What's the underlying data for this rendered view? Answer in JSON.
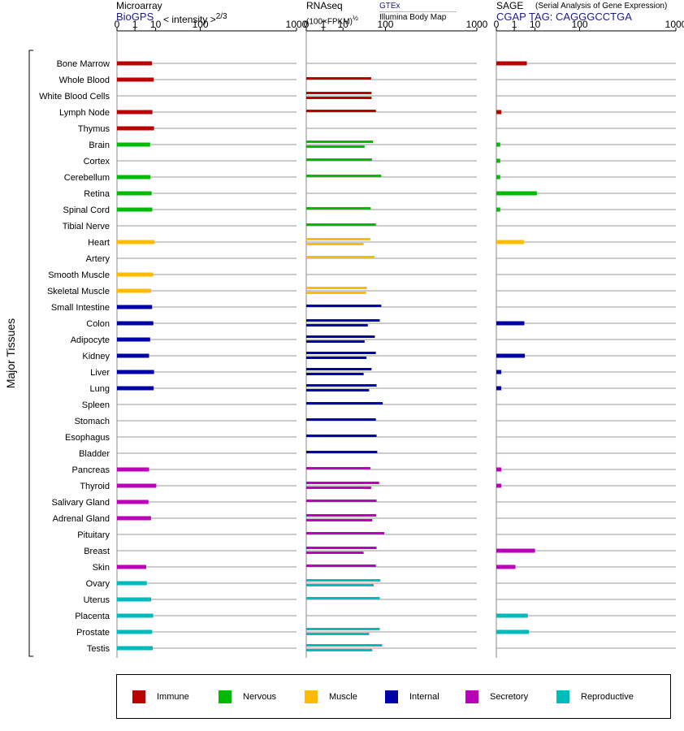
{
  "panels": {
    "microarray": {
      "title": "Microarray",
      "source": "BioGPS",
      "measure": "< intensity >",
      "exponent": "2/3"
    },
    "rnaseq": {
      "title": "RNAseq",
      "measure": "(100×FPKM)",
      "exponent": "½",
      "source_top": "GTEx",
      "source_bottom": "Illumina Body Map"
    },
    "sage": {
      "title": "SAGE",
      "subtitle": "(Serial Analysis of Gene Expression)",
      "tag": "CGAP TAG: CAGGGCCTGA"
    }
  },
  "colors": {
    "Immune": "#bb0000",
    "Nervous": "#00bb00",
    "Muscle": "#ffbb00",
    "Internal": "#0000aa",
    "Secretory": "#bb00bb",
    "Reproductive": "#00bbbb"
  },
  "chart_data": {
    "type": "bar",
    "orientation": "horizontal",
    "axis_label": "Major Tissues",
    "x_scale": "root-transformed",
    "x_ticks": [
      "0",
      "1",
      "10",
      "100",
      "1000"
    ],
    "xlim": [
      0,
      1000
    ],
    "legend": [
      "Immune",
      "Nervous",
      "Muscle",
      "Internal",
      "Secretory",
      "Reproductive"
    ],
    "tissues": [
      {
        "name": "Bone Marrow",
        "group": "Immune",
        "microarray": 7.4,
        "rnaseq": [],
        "sage": 4.9
      },
      {
        "name": "Whole Blood",
        "group": "Immune",
        "microarray": 8.6,
        "rnaseq": [
          55
        ],
        "sage": null
      },
      {
        "name": "White Blood Cells",
        "group": "Immune",
        "microarray": null,
        "rnaseq": [
          56,
          56
        ],
        "sage": null
      },
      {
        "name": "Lymph Node",
        "group": "Immune",
        "microarray": 7.7,
        "rnaseq": [
          68
        ],
        "sage": 0.02
      },
      {
        "name": "Thymus",
        "group": "Immune",
        "microarray": 8.8,
        "rnaseq": [],
        "sage": null
      },
      {
        "name": "Brain",
        "group": "Nervous",
        "microarray": 6.3,
        "rnaseq": [
          60,
          40
        ],
        "sage": 0.01
      },
      {
        "name": "Cortex",
        "group": "Nervous",
        "microarray": null,
        "rnaseq": [
          57
        ],
        "sage": 0.01
      },
      {
        "name": "Cerebellum",
        "group": "Nervous",
        "microarray": 6.5,
        "rnaseq": [
          85
        ],
        "sage": 0.01
      },
      {
        "name": "Retina",
        "group": "Nervous",
        "microarray": 7.2,
        "rnaseq": [],
        "sage": 11.5
      },
      {
        "name": "Spinal Cord",
        "group": "Nervous",
        "microarray": 7.6,
        "rnaseq": [
          54
        ],
        "sage": 0.01
      },
      {
        "name": "Tibial Nerve",
        "group": "Nervous",
        "microarray": null,
        "rnaseq": [
          68
        ],
        "sage": null
      },
      {
        "name": "Heart",
        "group": "Muscle",
        "microarray": 9.2,
        "rnaseq": [
          53,
          38
        ],
        "sage": 3.7
      },
      {
        "name": "Artery",
        "group": "Muscle",
        "microarray": null,
        "rnaseq": [
          64
        ],
        "sage": null
      },
      {
        "name": "Smooth Muscle",
        "group": "Muscle",
        "microarray": 8.2,
        "rnaseq": [],
        "sage": null
      },
      {
        "name": "Skeletal Muscle",
        "group": "Muscle",
        "microarray": 6.9,
        "rnaseq": [
          45,
          43
        ],
        "sage": null
      },
      {
        "name": "Small Intestine",
        "group": "Internal",
        "microarray": 7.5,
        "rnaseq": [
          85
        ],
        "sage": null
      },
      {
        "name": "Colon",
        "group": "Internal",
        "microarray": 8.3,
        "rnaseq": [
          80,
          47
        ],
        "sage": 3.8
      },
      {
        "name": "Adipocyte",
        "group": "Internal",
        "microarray": 6.3,
        "rnaseq": [
          65,
          40
        ],
        "sage": null
      },
      {
        "name": "Kidney",
        "group": "Internal",
        "microarray": 5.7,
        "rnaseq": [
          68,
          44
        ],
        "sage": 4.0
      },
      {
        "name": "Liver",
        "group": "Internal",
        "microarray": 8.8,
        "rnaseq": [
          56,
          38
        ],
        "sage": 0.02
      },
      {
        "name": "Lung",
        "group": "Internal",
        "microarray": 8.5,
        "rnaseq": [
          70,
          50
        ],
        "sage": 0.02
      },
      {
        "name": "Spleen",
        "group": "Internal",
        "microarray": null,
        "rnaseq": [
          90
        ],
        "sage": null
      },
      {
        "name": "Stomach",
        "group": "Internal",
        "microarray": null,
        "rnaseq": [
          68
        ],
        "sage": null
      },
      {
        "name": "Esophagus",
        "group": "Internal",
        "microarray": null,
        "rnaseq": [
          70
        ],
        "sage": null
      },
      {
        "name": "Bladder",
        "group": "Internal",
        "microarray": null,
        "rnaseq": [
          72
        ],
        "sage": null
      },
      {
        "name": "Pancreas",
        "group": "Secretory",
        "microarray": 5.7,
        "rnaseq": [
          53
        ],
        "sage": 0.02
      },
      {
        "name": "Thyroid",
        "group": "Secretory",
        "microarray": 10.5,
        "rnaseq": [
          78,
          55
        ],
        "sage": 0.02
      },
      {
        "name": "Salivary Gland",
        "group": "Secretory",
        "microarray": 5.4,
        "rnaseq": [
          70
        ],
        "sage": null
      },
      {
        "name": "Adrenal Gland",
        "group": "Secretory",
        "microarray": 6.8,
        "rnaseq": [
          69,
          58
        ],
        "sage": null
      },
      {
        "name": "Pituitary",
        "group": "Secretory",
        "microarray": null,
        "rnaseq": [
          96
        ],
        "sage": null
      },
      {
        "name": "Breast",
        "group": "Secretory",
        "microarray": null,
        "rnaseq": [
          70,
          38
        ],
        "sage": 10.0
      },
      {
        "name": "Skin",
        "group": "Secretory",
        "microarray": 4.3,
        "rnaseq": [
          68
        ],
        "sage": 1.2
      },
      {
        "name": "Ovary",
        "group": "Reproductive",
        "microarray": 4.6,
        "rnaseq": [
          82,
          62
        ],
        "sage": null
      },
      {
        "name": "Uterus",
        "group": "Reproductive",
        "microarray": 6.9,
        "rnaseq": [
          80
        ],
        "sage": null
      },
      {
        "name": "Placenta",
        "group": "Reproductive",
        "microarray": 8.2,
        "rnaseq": [],
        "sage": 5.4
      },
      {
        "name": "Prostate",
        "group": "Reproductive",
        "microarray": 7.5,
        "rnaseq": [
          80,
          50
        ],
        "sage": 6.0
      },
      {
        "name": "Testis",
        "group": "Reproductive",
        "microarray": 7.9,
        "rnaseq": [
          88,
          58
        ],
        "sage": null
      }
    ]
  }
}
